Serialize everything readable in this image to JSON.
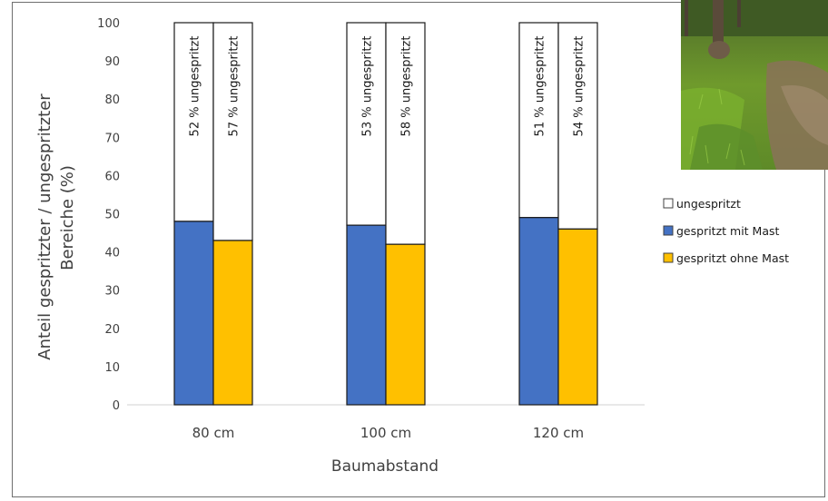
{
  "chart_data": {
    "type": "bar",
    "stacked": true,
    "percent_stacked": true,
    "categories": [
      "80 cm",
      "100 cm",
      "120 cm"
    ],
    "ylabel": "Anteil gespritzter / ungespritzter Bereiche (%)",
    "ylabel_lines": [
      "Anteil gespritzter / ungespritzter",
      "Bereiche (%)"
    ],
    "xlabel": "Baumabstand",
    "ylim": [
      0,
      100
    ],
    "yticks": [
      "0",
      "10",
      "20",
      "30",
      "40",
      "50",
      "60",
      "70",
      "80",
      "90",
      "100"
    ],
    "legend_position": "right",
    "legend": [
      {
        "label": "ungespritzt",
        "color": "#ffffff"
      },
      {
        "label": "gespritzt mit Mast",
        "color": "#4472c4"
      },
      {
        "label": "gespritzt ohne Mast",
        "color": "#ffc000"
      }
    ],
    "series": [
      {
        "name": "gespritzt mit Mast",
        "color": "#4472c4",
        "values": [
          48,
          47,
          49
        ],
        "ungespritzt_labels": [
          "52 % ungespritzt",
          "53 % ungespritzt",
          "51 % ungespritzt"
        ]
      },
      {
        "name": "gespritzt ohne Mast",
        "color": "#ffc000",
        "values": [
          43,
          42,
          46
        ],
        "ungespritzt_labels": [
          "57 % ungespritzt",
          "58 % ungespritzt",
          "54 % ungespritzt"
        ]
      }
    ]
  },
  "photo": {
    "description_icon": "orchard-grass-photo"
  }
}
